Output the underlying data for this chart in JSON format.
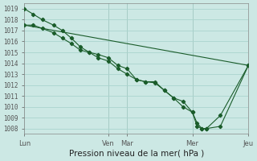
{
  "xlabel": "Pression niveau de la mer( hPa )",
  "background_color": "#cce8e4",
  "grid_color": "#aad4ce",
  "line_color": "#1a5c2a",
  "ylim": [
    1007.5,
    1019.5
  ],
  "yticks": [
    1008,
    1009,
    1010,
    1011,
    1012,
    1013,
    1014,
    1015,
    1016,
    1017,
    1018,
    1019
  ],
  "xtick_labels": [
    "Lun",
    "Ven",
    "Mar",
    "Mer",
    "Jeu"
  ],
  "xtick_positions": [
    0.0,
    0.375,
    0.458,
    0.75,
    1.0
  ],
  "series_long": {
    "x": [
      0.0,
      1.0
    ],
    "y": [
      1017.5,
      1013.8
    ]
  },
  "series_a": {
    "x": [
      0.0,
      0.04,
      0.08,
      0.13,
      0.17,
      0.21,
      0.25,
      0.29,
      0.33,
      0.375,
      0.417,
      0.458,
      0.5,
      0.54,
      0.583,
      0.625,
      0.667,
      0.708,
      0.75,
      0.771,
      0.792,
      0.813,
      0.875,
      1.0
    ],
    "y": [
      1019.0,
      1018.5,
      1018.0,
      1017.5,
      1017.0,
      1016.3,
      1015.5,
      1015.0,
      1014.8,
      1014.5,
      1013.8,
      1013.5,
      1012.5,
      1012.3,
      1012.3,
      1011.5,
      1010.8,
      1010.5,
      1009.5,
      1008.2,
      1008.0,
      1008.0,
      1008.2,
      1013.8
    ]
  },
  "series_b": {
    "x": [
      0.0,
      0.04,
      0.08,
      0.13,
      0.17,
      0.21,
      0.25,
      0.29,
      0.33,
      0.375,
      0.417,
      0.458,
      0.5,
      0.54,
      0.583,
      0.625,
      0.667,
      0.708,
      0.75,
      0.771,
      0.792,
      0.813,
      0.875,
      1.0
    ],
    "y": [
      1017.5,
      1017.5,
      1017.2,
      1016.8,
      1016.3,
      1015.8,
      1015.2,
      1015.0,
      1014.5,
      1014.2,
      1013.5,
      1013.0,
      1012.5,
      1012.3,
      1012.2,
      1011.5,
      1010.8,
      1010.0,
      1009.5,
      1008.5,
      1008.0,
      1008.0,
      1009.2,
      1013.8
    ]
  }
}
